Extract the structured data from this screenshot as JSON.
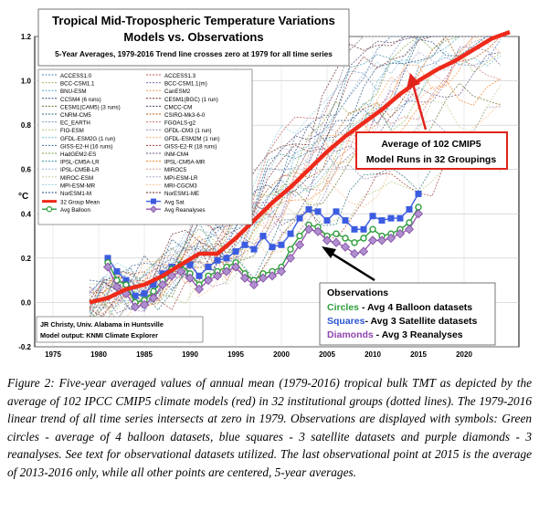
{
  "chart_data": {
    "type": "line",
    "title": "Tropical Mid-Tropospheric Temperature Variations",
    "title2": "Models vs. Observations",
    "subtitle": "5-Year Averages, 1979-2016 Trend line crosses zero at 1979 for all time series",
    "ylabel": "°C",
    "xlim": [
      1973,
      2026
    ],
    "ylim": [
      -0.2,
      1.2
    ],
    "x_ticks": [
      1975,
      1980,
      1985,
      1990,
      1995,
      2000,
      2005,
      2010,
      2015,
      2020
    ],
    "y_ticks": [
      -0.2,
      0.0,
      0.2,
      0.4,
      0.6,
      0.8,
      1.0,
      1.2
    ],
    "y_tick_labels": [
      "-0.2",
      "0.0",
      "0.2",
      "0.4",
      "0.6",
      "0.8",
      "1.0",
      "1.2"
    ],
    "grid": true,
    "legend_position": "upper-left",
    "model_names": [
      "ACCESS1.0",
      "ACCESS1.3",
      "BCC-CSM1.1",
      "BCC-CSM1.1(m)",
      "BNU-ESM",
      "CanESM2",
      "CCSM4 (6 runs)",
      "CESM1(BGC) (1 run)",
      "CESM1(CAM5) (3 runs)",
      "CMCC-CM",
      "CNRM-CM5",
      "CSIRO-Mk3-6-0",
      "EC_EARTH",
      "FGOALS-g2",
      "FIO-ESM",
      "GFDL-CM3 (1 run)",
      "GFDL-ESM2G (1 run)",
      "GFDL-ESM2M (1 run)",
      "GISS-E2-H (16 runs)",
      "GISS-E2-R (18 runs)",
      "HadGEM2-ES",
      "INM-CM4",
      "IPSL-CM5A-LR",
      "IPSL-CM5A-MR",
      "IPSL-CM5B-LR",
      "MIROC5",
      "MIROC-ESM",
      "MPI-ESM-LR",
      "MPI-ESM-MR",
      "MRI-CGCM3",
      "NorESM1-M",
      "NorESM1-ME"
    ],
    "model_colors": [
      "#4f81bd",
      "#c0504d",
      "#9bbb59",
      "#8064a2",
      "#4bacc6",
      "#f79646",
      "#2c4d75",
      "#772c2a",
      "#5f7530",
      "#4d3b62",
      "#276a7c",
      "#b65708",
      "#729aca",
      "#cd7371",
      "#afc97a",
      "#9983b5",
      "#6fbdd1",
      "#f9ab6b",
      "#3a679c",
      "#9f3b38",
      "#7e9c40",
      "#664f83",
      "#358ea6",
      "#f28021",
      "#95b3d7",
      "#d99694",
      "#c3d69b",
      "#b3a2c7",
      "#93cddd",
      "#fac090",
      "#1f497d",
      "#632523"
    ],
    "series": [
      {
        "name": "32 Group Mean",
        "color": "#ee2a1b",
        "x": [
          1979,
          1981,
          1983,
          1985,
          1987,
          1989,
          1991,
          1993,
          1995,
          1997,
          1999,
          2001,
          2003,
          2005,
          2007,
          2009,
          2011,
          2013,
          2015,
          2017,
          2019,
          2021,
          2023,
          2025
        ],
        "y": [
          0.0,
          0.02,
          0.06,
          0.08,
          0.12,
          0.17,
          0.22,
          0.22,
          0.29,
          0.37,
          0.45,
          0.52,
          0.6,
          0.68,
          0.75,
          0.81,
          0.87,
          0.94,
          1.0,
          1.05,
          1.09,
          1.14,
          1.19,
          1.22
        ]
      },
      {
        "name": "Avg Sat",
        "color": "#3b5ce0",
        "marker": "square",
        "x": [
          1981,
          1982,
          1983,
          1984,
          1985,
          1986,
          1987,
          1988,
          1989,
          1990,
          1991,
          1992,
          1993,
          1994,
          1995,
          1996,
          1997,
          1998,
          1999,
          2000,
          2001,
          2002,
          2003,
          2004,
          2005,
          2006,
          2007,
          2008,
          2009,
          2010,
          2011,
          2012,
          2013,
          2014,
          2015
        ],
        "y": [
          0.2,
          0.14,
          0.1,
          0.03,
          0.04,
          0.08,
          0.13,
          0.16,
          0.17,
          0.17,
          0.12,
          0.16,
          0.19,
          0.2,
          0.23,
          0.26,
          0.24,
          0.3,
          0.25,
          0.26,
          0.31,
          0.38,
          0.42,
          0.41,
          0.37,
          0.41,
          0.37,
          0.33,
          0.33,
          0.39,
          0.37,
          0.38,
          0.38,
          0.42,
          0.49
        ]
      },
      {
        "name": "Avg Balloon",
        "color": "#2e9e3c",
        "marker": "circle",
        "x": [
          1981,
          1982,
          1983,
          1984,
          1985,
          1986,
          1987,
          1988,
          1989,
          1990,
          1991,
          1992,
          1993,
          1994,
          1995,
          1996,
          1997,
          1998,
          1999,
          2000,
          2001,
          2002,
          2003,
          2004,
          2005,
          2006,
          2007,
          2008,
          2009,
          2010,
          2011,
          2012,
          2013,
          2014,
          2015
        ],
        "y": [
          0.18,
          0.1,
          0.08,
          0.0,
          0.01,
          0.05,
          0.1,
          0.15,
          0.17,
          0.13,
          0.08,
          0.12,
          0.14,
          0.16,
          0.18,
          0.13,
          0.1,
          0.13,
          0.14,
          0.16,
          0.24,
          0.3,
          0.35,
          0.34,
          0.3,
          0.31,
          0.29,
          0.27,
          0.29,
          0.33,
          0.3,
          0.31,
          0.33,
          0.36,
          0.43
        ]
      },
      {
        "name": "Avg Reanalyses",
        "color": "#9b59b6",
        "marker": "diamond",
        "x": [
          1981,
          1982,
          1983,
          1984,
          1985,
          1986,
          1987,
          1988,
          1989,
          1990,
          1991,
          1992,
          1993,
          1994,
          1995,
          1996,
          1997,
          1998,
          1999,
          2000,
          2001,
          2002,
          2003,
          2004,
          2005,
          2006,
          2007,
          2008,
          2009,
          2010,
          2011,
          2012,
          2013,
          2014,
          2015
        ],
        "y": [
          0.16,
          0.07,
          0.04,
          -0.02,
          -0.01,
          0.02,
          0.08,
          0.12,
          0.14,
          0.11,
          0.06,
          0.1,
          0.12,
          0.14,
          0.16,
          0.11,
          0.08,
          0.11,
          0.12,
          0.14,
          0.2,
          0.26,
          0.33,
          0.32,
          0.28,
          0.27,
          0.25,
          0.22,
          0.23,
          0.28,
          0.28,
          0.29,
          0.31,
          0.33,
          0.4
        ]
      }
    ],
    "annotations": {
      "models_box": [
        "Average of 102 CMIP5",
        "Model Runs in 32 Groupings"
      ],
      "obs_title": "Observations",
      "obs_lines": [
        {
          "bold": "Circles",
          "rest": " - Avg 4 Balloon datasets",
          "color": "#2e9e3c"
        },
        {
          "bold": "Squares",
          "rest": "- Avg 3 Satellite datasets",
          "color": "#2b55d6"
        },
        {
          "bold": "Diamonds",
          "rest": " - Avg 3 Reanalyses",
          "color": "#8e44ad"
        }
      ],
      "credit": [
        "JR Christy, Univ. Alabama in Huntsville",
        "Model output: KNMI Climate Explorer"
      ]
    }
  },
  "caption": "Figure 2: Five-year averaged values of annual mean (1979-2016) tropical bulk TMT as depicted by the average of 102 IPCC CMIP5 climate models (red) in 32 institutional groups (dotted lines). The 1979-2016 linear trend of all time series intersects at zero in 1979. Observations are displayed with symbols: Green circles - average of 4 balloon datasets, blue squares - 3 satellite datasets and purple diamonds - 3 reanalyses. See text for observational datasets utilized. The last observational point at 2015 is the average of 2013-2016 only, while all other points are centered, 5-year averages."
}
